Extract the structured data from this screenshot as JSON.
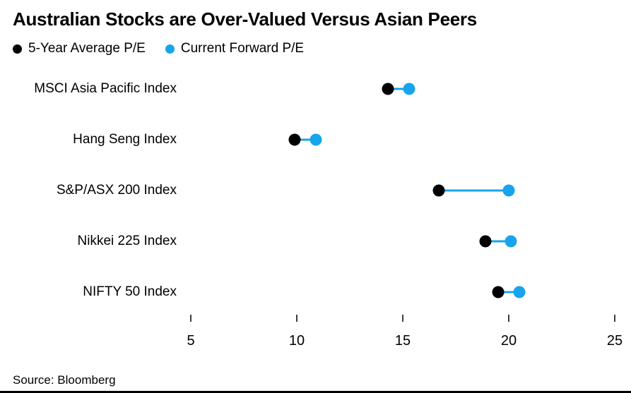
{
  "title": "Australian Stocks are Over-Valued Versus Asian Peers",
  "legend": {
    "items": [
      {
        "label": "5-Year Average P/E",
        "color": "#000000"
      },
      {
        "label": "Current Forward P/E",
        "color": "#17a4ec"
      }
    ]
  },
  "source": "Source: Bloomberg",
  "colors": {
    "avg_series": "#000000",
    "forward_series": "#17a4ec",
    "connector": "#17a4ec"
  },
  "chart_data": {
    "type": "dumbbell",
    "title": "Australian Stocks are Over-Valued Versus Asian Peers",
    "categories": [
      "MSCI Asia Pacific Index",
      "Hang Seng Index",
      "S&P/ASX 200 Index",
      "Nikkei 225 Index",
      "NIFTY 50 Index"
    ],
    "series": [
      {
        "name": "5-Year Average P/E",
        "color": "#000000",
        "values": [
          14.3,
          9.9,
          16.7,
          18.9,
          19.5
        ]
      },
      {
        "name": "Current Forward P/E",
        "color": "#17a4ec",
        "values": [
          15.3,
          10.9,
          20.0,
          20.1,
          20.5
        ]
      }
    ],
    "xlabel": "",
    "ylabel": "",
    "xticks": [
      5,
      10,
      15,
      20,
      25
    ],
    "xlim": [
      5,
      25
    ],
    "grid": false,
    "legend_position": "top-left"
  }
}
